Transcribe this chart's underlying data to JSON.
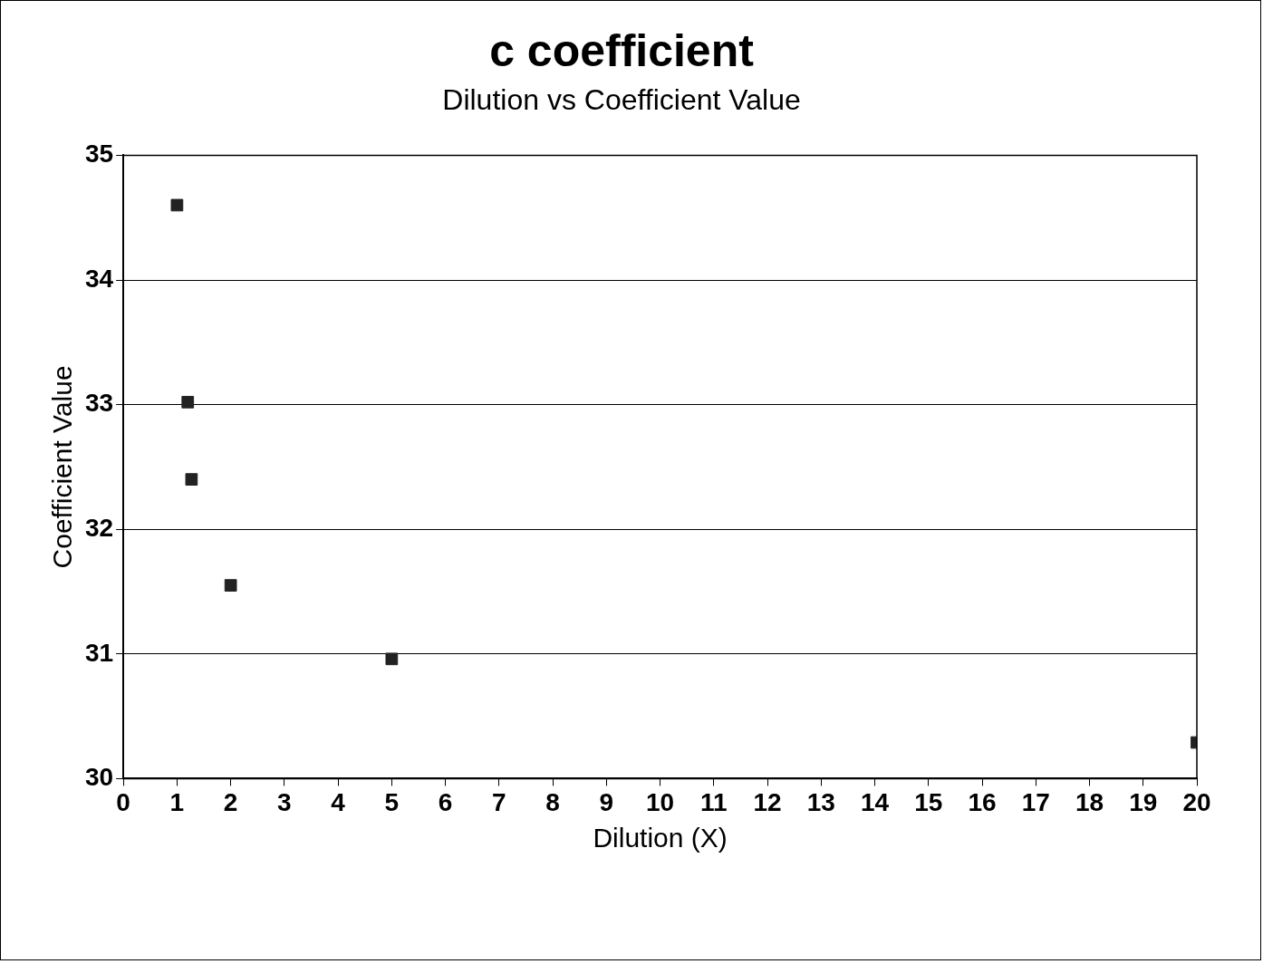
{
  "chart_data": {
    "type": "scatter",
    "title": "c coefficient",
    "subtitle": "Dilution vs Coefficient Value",
    "xlabel": "Dilution (X)",
    "ylabel": "Coefficient Value",
    "x": [
      1,
      1.2,
      1.27,
      2,
      5,
      20
    ],
    "series": [
      {
        "color": "#222222",
        "values": [
          34.6,
          33.02,
          32.4,
          31.55,
          30.96,
          30.29
        ]
      }
    ],
    "xlim": [
      0,
      20
    ],
    "xticks": [
      0,
      1,
      2,
      3,
      4,
      5,
      6,
      7,
      8,
      9,
      10,
      11,
      12,
      13,
      14,
      15,
      16,
      17,
      18,
      19,
      20
    ],
    "ylim": [
      30,
      35
    ],
    "yticks": [
      30,
      31,
      32,
      33,
      34,
      35
    ],
    "grid": "y",
    "legend": false,
    "marker": "square"
  }
}
